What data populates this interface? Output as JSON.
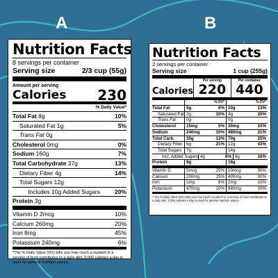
{
  "panel_a": {
    "letter": "A",
    "title": "Nutrition Facts",
    "servings": "8 servings per container",
    "serving_size_label": "Serving size",
    "serving_size_value": "2/3 cup (55g)",
    "amount_per_serving": "Amount per serving",
    "calories_label": "Calories",
    "calories_value": "230",
    "dv_header": "% Daily Value*",
    "rows": [
      {
        "label": "Total Fat",
        "amount": "8g",
        "pct": "10%"
      },
      {
        "label": "Saturated Fat",
        "amount": "1g",
        "pct": "5%"
      },
      {
        "label": "Trans Fat",
        "amount": "0g",
        "pct": ""
      },
      {
        "label": "Cholesterol",
        "amount": "0mg",
        "pct": "0%"
      },
      {
        "label": "Sodium",
        "amount": "160g",
        "pct": "7%"
      },
      {
        "label": "Total Carbohydrate",
        "amount": "37g",
        "pct": "13%"
      },
      {
        "label": "Dietary Fiber",
        "amount": "4g",
        "pct": "14%"
      },
      {
        "label": "Total Sugars",
        "amount": "12g",
        "pct": ""
      },
      {
        "label": "Includes 10g Added Sugars",
        "amount": "",
        "pct": "20%"
      },
      {
        "label": "Protein",
        "amount": "3g",
        "pct": ""
      }
    ],
    "vitamins": [
      {
        "label": "Vitamin D 2mcg",
        "pct": "10%"
      },
      {
        "label": "Calcium 260mg",
        "pct": "20%"
      },
      {
        "label": "Iron 8mg",
        "pct": "45%"
      },
      {
        "label": "Potassium 240mg",
        "pct": "6%"
      }
    ],
    "footnote": "*The % Daily Value (DV) tells you how much a nutrient in a serving of food contributes to a daily diet. 2,000 calories a day is used for general nutrition advice."
  },
  "panel_b": {
    "letter": "B",
    "title": "Nutrition Facts",
    "servings": "2 servings per container",
    "serving_size_label": "Serving size",
    "serving_size_value": "1 cup (255g)",
    "calories_label": "Calories",
    "col1_header": "Per serving",
    "col2_header": "Per container",
    "col1_calories": "220",
    "col2_calories": "440",
    "dv_header": "% DV*",
    "rows": [
      {
        "label": "Total Fat",
        "a1": "5g",
        "p1": "6%",
        "a2": "10g",
        "p2": "13%"
      },
      {
        "label": "Saturated Fat",
        "a1": "2g",
        "p1": "10%",
        "a2": "4g",
        "p2": "20%"
      },
      {
        "label": "Trans Fat",
        "a1": "0g",
        "p1": "",
        "a2": "0g",
        "p2": ""
      },
      {
        "label": "Cholesterol",
        "a1": "15mg",
        "p1": "5%",
        "a2": "30mg",
        "p2": "10%"
      },
      {
        "label": "Sodium",
        "a1": "240mg",
        "p1": "10%",
        "a2": "480mg",
        "p2": "21%"
      },
      {
        "label": "Total Carb.",
        "a1": "35g",
        "p1": "13%",
        "a2": "70g",
        "p2": "25%"
      },
      {
        "label": "Dietary Fiber",
        "a1": "6g",
        "p1": "21%",
        "a2": "12g",
        "p2": "43%"
      },
      {
        "label": "Total Sugars",
        "a1": "7g",
        "p1": "",
        "a2": "14g",
        "p2": ""
      },
      {
        "label": "Incl. Added Sugars",
        "a1": "4g",
        "p1": "8%",
        "a2": "8g",
        "p2": "16%"
      },
      {
        "label": "Protein",
        "a1": "9g",
        "p1": "",
        "a2": "18g",
        "p2": ""
      }
    ],
    "vitamins": [
      {
        "label": "Vitamin D",
        "a1": "5mcg",
        "p1": "25%",
        "a2": "10mcg",
        "p2": "50%"
      },
      {
        "label": "Calcium",
        "a1": "200mg",
        "p1": "15%",
        "a2": "400mg",
        "p2": "30%"
      },
      {
        "label": "Iron",
        "a1": "1mg",
        "p1": "6%",
        "a2": "2mg",
        "p2": "10%"
      },
      {
        "label": "Potassium",
        "a1": "470mg",
        "p1": "10%",
        "a2": "940mg",
        "p2": "20%"
      }
    ],
    "footnote": "* The % Daily Value (DV) tells you how much a nutrient in a serving of food contributes to a daily diet. 2,000 calories a day is used for general nutrition advice."
  }
}
